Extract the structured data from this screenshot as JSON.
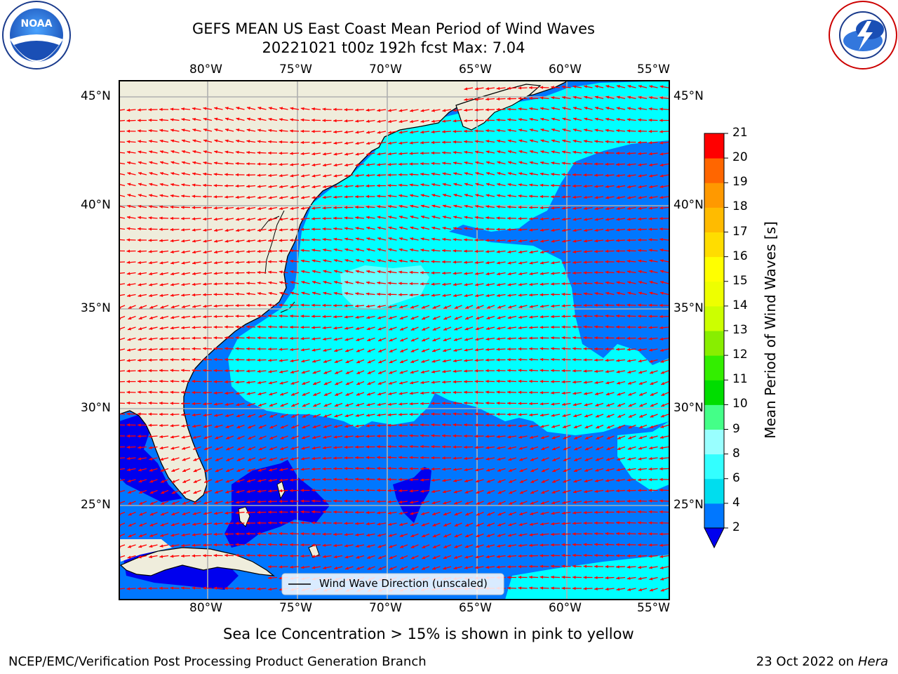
{
  "header": {
    "title_line1": "GEFS MEAN US East Coast Mean Period of Wind Waves",
    "title_line2": "20221021 t00z 192h fcst   Max: 7.04"
  },
  "logos": {
    "left": {
      "text": "NOAA",
      "icon": "noaa-logo"
    },
    "right": {
      "text": "NATIONAL WEATHER SERVICE",
      "icon": "nws-logo"
    }
  },
  "map": {
    "lon_labels": [
      "80°W",
      "75°W",
      "70°W",
      "65°W",
      "60°W",
      "55°W"
    ],
    "lat_labels": [
      "45°N",
      "40°N",
      "35°N",
      "30°N",
      "25°N"
    ],
    "legend_label": "Wind Wave Direction (unscaled)",
    "region": "US East Coast",
    "arrow_color": "#ff0000",
    "land_color": "#efeddc"
  },
  "colorbar": {
    "label": "Mean Period of Wind Waves [s]",
    "ticks": [
      "2",
      "4",
      "6",
      "8",
      "9",
      "10",
      "11",
      "12",
      "13",
      "14",
      "15",
      "16",
      "17",
      "18",
      "19",
      "20",
      "21"
    ],
    "colors": [
      "#0077ff",
      "#00ddee",
      "#33ffff",
      "#99ffff",
      "#44ff88",
      "#00dd00",
      "#33ee00",
      "#88ee00",
      "#ccff00",
      "#eeff00",
      "#ffff00",
      "#ffdd00",
      "#ffbb00",
      "#ff9900",
      "#ff6600",
      "#ff3300",
      "#ff0000"
    ],
    "under_color": "#0000ee"
  },
  "footer": {
    "sea_ice_note": "Sea Ice Concentration > 15% is shown in pink to yellow",
    "branch": "NCEP/EMC/Verification Post Processing Product Generation Branch",
    "date": "23 Oct 2022 on",
    "machine": "Hera"
  }
}
